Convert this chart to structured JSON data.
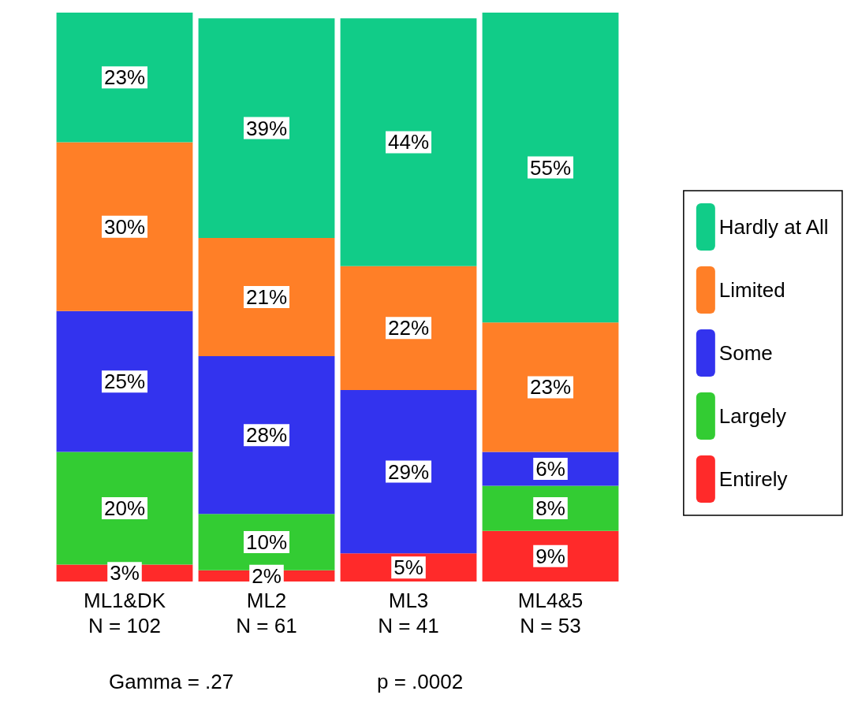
{
  "chart_data": {
    "type": "bar",
    "stacked": true,
    "categories": [
      "ML1&DK\nN = 102",
      "ML2\nN = 61",
      "ML3\nN = 41",
      "ML4&5\nN = 53"
    ],
    "series": [
      {
        "name": "Entirely",
        "color": "#ff2a2a",
        "values": [
          3,
          2,
          5,
          9
        ],
        "value_labels": [
          "3%",
          "2%",
          "5%",
          "9%"
        ]
      },
      {
        "name": "Largely",
        "color": "#33cc33",
        "values": [
          20,
          10,
          null,
          8
        ],
        "value_labels": [
          "20%",
          "10%",
          null,
          "8%"
        ]
      },
      {
        "name": "Some",
        "color": "#3333ee",
        "values": [
          25,
          28,
          29,
          6
        ],
        "value_labels": [
          "25%",
          "28%",
          "29%",
          "6%"
        ]
      },
      {
        "name": "Limited",
        "color": "#ff7f27",
        "values": [
          30,
          21,
          22,
          23
        ],
        "value_labels": [
          "30%",
          "21%",
          "22%",
          "23%"
        ]
      },
      {
        "name": "Hardly at All",
        "color": "#11cc88",
        "values": [
          23,
          39,
          44,
          55
        ],
        "value_labels": [
          "23%",
          "39%",
          "44%",
          "55%"
        ]
      }
    ],
    "legend": "right",
    "annotations": [
      "Gamma = .27",
      "p = .0002"
    ]
  }
}
